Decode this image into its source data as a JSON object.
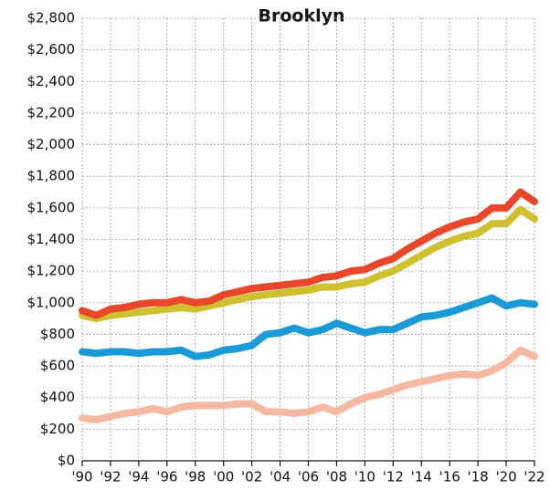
{
  "chart_data": {
    "type": "line",
    "title": "Brooklyn",
    "x": [
      1990,
      1991,
      1992,
      1993,
      1994,
      1995,
      1996,
      1997,
      1998,
      1999,
      2000,
      2001,
      2002,
      2003,
      2004,
      2005,
      2006,
      2007,
      2008,
      2009,
      2010,
      2011,
      2012,
      2013,
      2014,
      2015,
      2016,
      2017,
      2018,
      2019,
      2020,
      2021,
      2022
    ],
    "xlim": [
      1990,
      2022
    ],
    "xticks": [
      {
        "value": 1990,
        "label": "'90"
      },
      {
        "value": 1992,
        "label": "'92"
      },
      {
        "value": 1994,
        "label": "'94"
      },
      {
        "value": 1996,
        "label": "'96"
      },
      {
        "value": 1998,
        "label": "'98"
      },
      {
        "value": 2000,
        "label": "'00"
      },
      {
        "value": 2002,
        "label": "'02"
      },
      {
        "value": 2004,
        "label": "'04"
      },
      {
        "value": 2006,
        "label": "'06"
      },
      {
        "value": 2008,
        "label": "'08"
      },
      {
        "value": 2010,
        "label": "'10"
      },
      {
        "value": 2012,
        "label": "'12"
      },
      {
        "value": 2014,
        "label": "'14"
      },
      {
        "value": 2016,
        "label": "'16"
      },
      {
        "value": 2018,
        "label": "'18"
      },
      {
        "value": 2020,
        "label": "'20"
      },
      {
        "value": 2022,
        "label": "'22"
      }
    ],
    "ylim": [
      0,
      2800
    ],
    "yticks": [
      {
        "value": 0,
        "label": "$0"
      },
      {
        "value": 200,
        "label": "$200"
      },
      {
        "value": 400,
        "label": "$400"
      },
      {
        "value": 600,
        "label": "$600"
      },
      {
        "value": 800,
        "label": "$800"
      },
      {
        "value": 1000,
        "label": "$1,000"
      },
      {
        "value": 1200,
        "label": "$1,200"
      },
      {
        "value": 1400,
        "label": "$1,400"
      },
      {
        "value": 1600,
        "label": "$1,600"
      },
      {
        "value": 1800,
        "label": "$1,800"
      },
      {
        "value": 2000,
        "label": "$2,000"
      },
      {
        "value": 2200,
        "label": "$2,200"
      },
      {
        "value": 2400,
        "label": "$2,400"
      },
      {
        "value": 2600,
        "label": "$2,600"
      },
      {
        "value": 2800,
        "label": "$2,800"
      }
    ],
    "grid": true,
    "series": [
      {
        "color": "#f5b8a0",
        "values": [
          270,
          260,
          280,
          300,
          310,
          330,
          310,
          340,
          350,
          350,
          350,
          360,
          360,
          310,
          310,
          300,
          310,
          340,
          310,
          360,
          400,
          420,
          450,
          480,
          500,
          520,
          540,
          550,
          540,
          570,
          620,
          700,
          660
        ]
      },
      {
        "color": "#1a9ad6",
        "values": [
          690,
          680,
          690,
          690,
          680,
          690,
          690,
          700,
          660,
          670,
          700,
          710,
          730,
          800,
          810,
          840,
          810,
          830,
          870,
          840,
          810,
          830,
          830,
          870,
          910,
          920,
          940,
          970,
          1000,
          1030,
          980,
          1000,
          990
        ]
      },
      {
        "color": "#cfc030",
        "values": [
          920,
          900,
          920,
          930,
          940,
          950,
          960,
          970,
          960,
          980,
          1000,
          1020,
          1040,
          1050,
          1060,
          1070,
          1080,
          1100,
          1100,
          1120,
          1130,
          1170,
          1200,
          1250,
          1300,
          1350,
          1390,
          1420,
          1440,
          1500,
          1500,
          1590,
          1530
        ]
      },
      {
        "color": "#e8472a",
        "values": [
          950,
          920,
          960,
          970,
          990,
          1000,
          1000,
          1020,
          1000,
          1010,
          1050,
          1070,
          1090,
          1100,
          1110,
          1120,
          1130,
          1160,
          1170,
          1200,
          1210,
          1250,
          1280,
          1340,
          1390,
          1440,
          1480,
          1510,
          1530,
          1600,
          1600,
          1700,
          1640
        ]
      }
    ]
  }
}
